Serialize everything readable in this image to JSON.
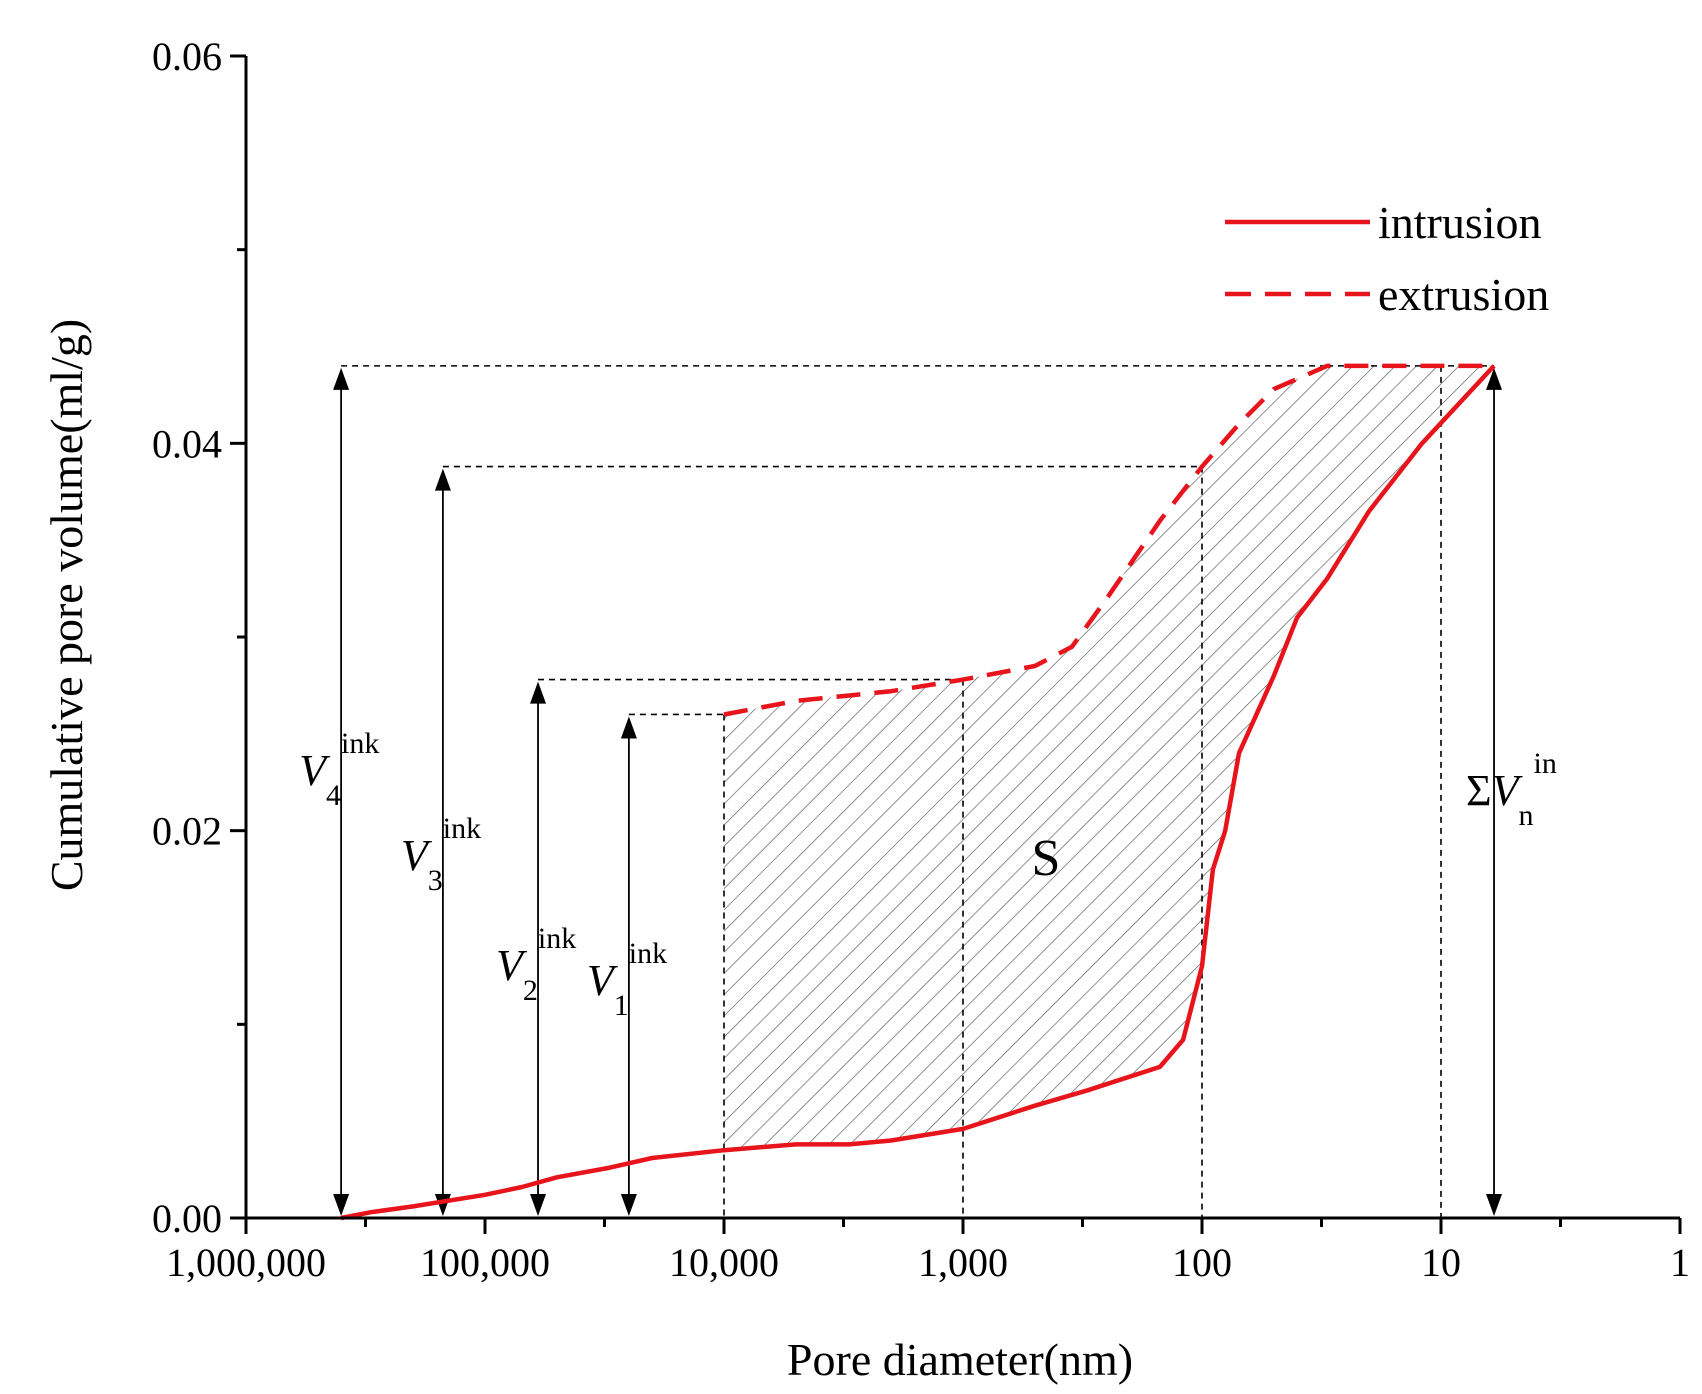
{
  "chart_data": {
    "type": "line",
    "title": "",
    "xlabel": "Pore diameter(nm)",
    "ylabel": "Cumulative pore volume(ml/g)",
    "x_scale": "log",
    "x_reversed": true,
    "xlim": [
      1000000,
      1
    ],
    "ylim": [
      0,
      0.06
    ],
    "x_ticks": [
      {
        "value": 1000000,
        "label": "1,000,000"
      },
      {
        "value": 100000,
        "label": "100,000"
      },
      {
        "value": 10000,
        "label": "10,000"
      },
      {
        "value": 1000,
        "label": "1,000"
      },
      {
        "value": 100,
        "label": "100"
      },
      {
        "value": 10,
        "label": "10"
      },
      {
        "value": 1,
        "label": "1"
      }
    ],
    "y_ticks": [
      {
        "value": 0.0,
        "label": "0.00"
      },
      {
        "value": 0.02,
        "label": "0.02"
      },
      {
        "value": 0.04,
        "label": "0.04"
      },
      {
        "value": 0.06,
        "label": "0.06"
      }
    ],
    "y_minor_ticks": [
      0.01,
      0.03,
      0.05
    ],
    "legend": {
      "position": "top-right",
      "items": [
        {
          "label": "intrusion",
          "style": "solid"
        },
        {
          "label": "extrusion",
          "style": "dashed"
        }
      ]
    },
    "series": [
      {
        "name": "intrusion",
        "style": "solid",
        "color": "#e8141c",
        "points": [
          [
            400000,
            0.0
          ],
          [
            300000,
            0.0003
          ],
          [
            200000,
            0.0006
          ],
          [
            100000,
            0.0012
          ],
          [
            70000,
            0.0016
          ],
          [
            50000,
            0.0021
          ],
          [
            30000,
            0.0026
          ],
          [
            20000,
            0.0031
          ],
          [
            10000,
            0.0035
          ],
          [
            5000,
            0.0038
          ],
          [
            3000,
            0.0038
          ],
          [
            2000,
            0.004
          ],
          [
            1000,
            0.0046
          ],
          [
            500,
            0.0058
          ],
          [
            300,
            0.0066
          ],
          [
            150,
            0.0078
          ],
          [
            120,
            0.0092
          ],
          [
            100,
            0.013
          ],
          [
            90,
            0.018
          ],
          [
            80,
            0.02
          ],
          [
            70,
            0.024
          ],
          [
            50,
            0.028
          ],
          [
            40,
            0.031
          ],
          [
            30,
            0.033
          ],
          [
            20,
            0.0365
          ],
          [
            12,
            0.04
          ],
          [
            6,
            0.044
          ]
        ]
      },
      {
        "name": "extrusion",
        "style": "dashed",
        "color": "#e8141c",
        "points": [
          [
            10000,
            0.026
          ],
          [
            5000,
            0.0267
          ],
          [
            2000,
            0.0272
          ],
          [
            1000,
            0.0278
          ],
          [
            500,
            0.0285
          ],
          [
            350,
            0.0295
          ],
          [
            250,
            0.032
          ],
          [
            150,
            0.036
          ],
          [
            100,
            0.0388
          ],
          [
            70,
            0.041
          ],
          [
            50,
            0.0428
          ],
          [
            30,
            0.044
          ],
          [
            6,
            0.044
          ]
        ]
      }
    ],
    "shaded_region": {
      "label": "S",
      "pattern": "hatched",
      "between": [
        "extrusion",
        "intrusion"
      ],
      "x_range": [
        10000,
        6
      ]
    },
    "annotations": [
      {
        "main": "V",
        "sub": "4",
        "sup": "ink",
        "x": 400000,
        "y_top": 0.044
      },
      {
        "main": "V",
        "sub": "3",
        "sup": "ink",
        "x": 150000,
        "y_top": 0.0388
      },
      {
        "main": "V",
        "sub": "2",
        "sup": "ink",
        "x": 60000,
        "y_top": 0.0278
      },
      {
        "main": "V",
        "sub": "1",
        "sup": "ink",
        "x": 25000,
        "y_top": 0.026
      },
      {
        "sigma": "Σ",
        "main": "V",
        "sub": "n",
        "sup": "in",
        "x": 6,
        "y_top": 0.044
      }
    ],
    "guide_lines": {
      "vertical_x": [
        10000,
        1000,
        100,
        10
      ],
      "horizontal_y": [
        0.044,
        0.0388,
        0.0278,
        0.026
      ]
    },
    "color": "#e8141c"
  }
}
